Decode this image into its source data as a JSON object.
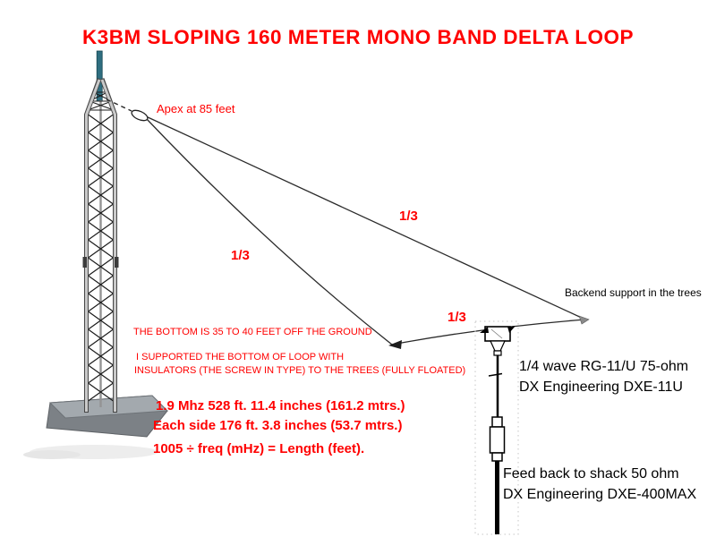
{
  "title": "K3BM SLOPING 160 METER MONO BAND DELTA LOOP",
  "colors": {
    "accent_red": "#ff0000",
    "text_black": "#000000",
    "mast_teal": "#2f6e80",
    "tower_light": "#c9c9c9",
    "tower_dark": "#474747",
    "base_top_gray": "#a3a9ae",
    "base_front_gray": "#7c8186",
    "wire_black": "#2b2b2b"
  },
  "labels": {
    "apex": "Apex at 85 feet",
    "one_third": "1/3",
    "backend": "Backend support in the trees",
    "bottom_height": "THE BOTTOM IS 35 TO 40 FEET OFF THE GROUND",
    "support_line1": "I SUPPORTED THE BOTTOM OF LOOP WITH",
    "support_line2": "INSULATORS  (THE SCREW IN TYPE)  TO THE TREES  (FULLY  FLOATED)",
    "freq_line1": "1.9 Mhz  528 ft. 11.4 inches  (161.2 mtrs.)",
    "freq_line2": "Each side 176 ft. 3.8 inches  (53.7 mtrs.)",
    "formula": "1005 ÷ freq (mHz) = Length (feet).",
    "matching_line1": "1/4 wave RG-11/U 75-ohm",
    "matching_line2": "DX Engineering  DXE-11U",
    "feed_line1": "Feed back to shack 50 ohm",
    "feed_line2": "DX Engineering DXE-400MAX"
  }
}
